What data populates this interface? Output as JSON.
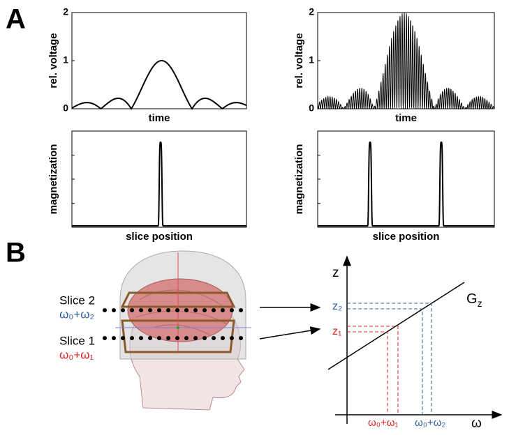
{
  "panel_labels": [
    "A",
    "B"
  ],
  "plots": [
    {
      "ylabel": "rel. voltage",
      "xlabel": "time",
      "ylim": [
        0,
        2
      ],
      "yticks": [
        0,
        1,
        2
      ]
    },
    {
      "ylabel": "rel. voltage",
      "xlabel": "time",
      "ylim": [
        0,
        2
      ],
      "yticks": [
        0,
        1,
        2
      ]
    },
    {
      "ylabel": "magnetization",
      "xlabel": "slice position"
    },
    {
      "ylabel": "magnetization",
      "xlabel": "slice position"
    }
  ],
  "slices": [
    {
      "name": "Slice 2",
      "freq": "ω₀+ω₂"
    },
    {
      "name": "Slice 1",
      "freq": "ω₀+ω₁"
    }
  ],
  "graph": {
    "y_axis": "z",
    "x_axis": "ω",
    "line_label": {
      "main": "G",
      "sub": "z"
    },
    "z_labels": [
      "z₂",
      "z₁"
    ],
    "freq_labels": [
      "ω₀+ω₁",
      "ω₀+ω₂"
    ]
  }
}
